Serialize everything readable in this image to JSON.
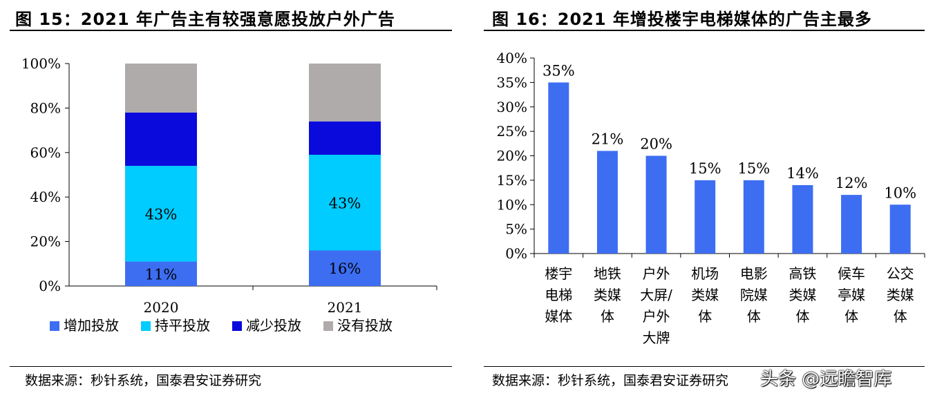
{
  "chart_data": [
    {
      "type": "bar",
      "stacked": true,
      "title": "图 15：2021 年广告主有较强意愿投放户外广告",
      "categories": [
        "2020",
        "2021"
      ],
      "series": [
        {
          "name": "增加投放",
          "values": [
            11,
            16
          ],
          "color": "#3d6ef2",
          "labels": [
            "11%",
            "16%"
          ]
        },
        {
          "name": "持平投放",
          "values": [
            43,
            43
          ],
          "color": "#00ccff",
          "labels": [
            "43%",
            "43%"
          ]
        },
        {
          "name": "减少投放",
          "values": [
            24,
            15
          ],
          "color": "#0a0adc",
          "labels": [
            "",
            ""
          ]
        },
        {
          "name": "没有投放",
          "values": [
            22,
            26
          ],
          "color": "#afabab",
          "labels": [
            "",
            ""
          ]
        }
      ],
      "ylim": [
        0,
        100
      ],
      "yticks": [
        "0%",
        "20%",
        "40%",
        "60%",
        "80%",
        "100%"
      ],
      "ytick_values": [
        0,
        20,
        40,
        60,
        80,
        100
      ],
      "legend_position": "bottom",
      "grid": false,
      "source": "数据来源：秒针系统，国泰君安证券研究"
    },
    {
      "type": "bar",
      "title": "图 16：2021 年增投楼宇电梯媒体的广告主最多",
      "categories": [
        "楼宇电梯媒体",
        "地铁类媒体",
        "户外大屏/户外大牌",
        "机场类媒体",
        "电影院媒体",
        "高铁类媒体",
        "候车亭媒体",
        "公交类媒体"
      ],
      "category_lines": [
        [
          "楼宇",
          "电梯",
          "媒体"
        ],
        [
          "地铁",
          "类媒",
          "体"
        ],
        [
          "户外",
          "大屏/",
          "户外",
          "大牌"
        ],
        [
          "机场",
          "类媒",
          "体"
        ],
        [
          "电影",
          "院媒",
          "体"
        ],
        [
          "高铁",
          "类媒",
          "体"
        ],
        [
          "候车",
          "亭媒",
          "体"
        ],
        [
          "公交",
          "类媒",
          "体"
        ]
      ],
      "values": [
        35,
        21,
        20,
        15,
        15,
        14,
        12,
        10
      ],
      "labels": [
        "35%",
        "21%",
        "20%",
        "15%",
        "15%",
        "14%",
        "12%",
        "10%"
      ],
      "color": "#3d6ef2",
      "ylim": [
        0,
        40
      ],
      "yticks": [
        "0%",
        "5%",
        "10%",
        "15%",
        "20%",
        "25%",
        "30%",
        "35%",
        "40%"
      ],
      "ytick_values": [
        0,
        5,
        10,
        15,
        20,
        25,
        30,
        35,
        40
      ],
      "grid": false,
      "source": "数据来源：秒针系统，国泰君安证券研究"
    }
  ],
  "watermark": "头条 @远瞻智库"
}
